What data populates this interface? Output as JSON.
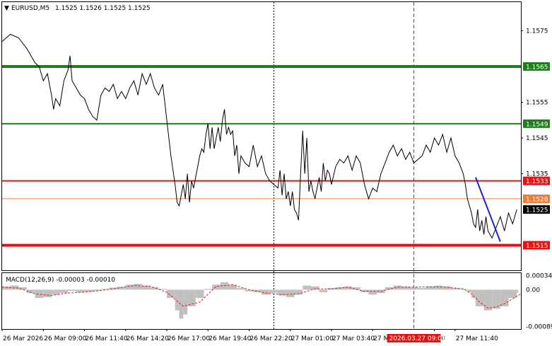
{
  "header": {
    "arrow": "▼",
    "symbol": "EURUSD,M5",
    "ohlc": "1.1525 1.1526 1.1525 1.1525"
  },
  "colors": {
    "green": "#1e7e1e",
    "red": "#e81010",
    "orange": "#f07b34",
    "blue": "#1d1dd6",
    "price": "#000000",
    "macd_hist": "#c0c0c0",
    "macd_signal": "#e02020"
  },
  "chart_data": {
    "type": "line",
    "price_axis": {
      "ylim": [
        1.1508,
        1.1583
      ],
      "ticks": [
        "1.1575",
        "1.1555",
        "1.1545",
        "1.1535"
      ]
    },
    "levels": [
      {
        "value": 1.1565,
        "label": "1.1565",
        "color": "green",
        "width": 4
      },
      {
        "value": 1.1549,
        "label": "1.1549",
        "color": "green",
        "width": 2
      },
      {
        "value": 1.1533,
        "label": "1.1533",
        "color": "red",
        "width": 2
      },
      {
        "value": 1.1528,
        "label": "1.1528",
        "color": "orange",
        "width": 1
      },
      {
        "value": 1.1515,
        "label": "1.1515",
        "color": "red",
        "width": 4
      }
    ],
    "current_price": {
      "value": 1.1525,
      "label": "1.1525"
    },
    "price_series": [
      [
        0,
        1.1572
      ],
      [
        4,
        1.1574
      ],
      [
        8,
        1.1573
      ],
      [
        12,
        1.157
      ],
      [
        16,
        1.1566
      ],
      [
        18,
        1.1565
      ],
      [
        20,
        1.1561
      ],
      [
        22,
        1.1563
      ],
      [
        24,
        1.1557
      ],
      [
        25,
        1.1553
      ],
      [
        26,
        1.1556
      ],
      [
        28,
        1.1554
      ],
      [
        30,
        1.1561
      ],
      [
        32,
        1.1564
      ],
      [
        33,
        1.1568
      ],
      [
        34,
        1.1561
      ],
      [
        36,
        1.1559
      ],
      [
        38,
        1.1557
      ],
      [
        40,
        1.1556
      ],
      [
        42,
        1.1553
      ],
      [
        44,
        1.1551
      ],
      [
        46,
        1.155
      ],
      [
        48,
        1.1557
      ],
      [
        50,
        1.1559
      ],
      [
        52,
        1.1558
      ],
      [
        54,
        1.156
      ],
      [
        56,
        1.1556
      ],
      [
        58,
        1.1558
      ],
      [
        60,
        1.1556
      ],
      [
        62,
        1.1559
      ],
      [
        64,
        1.1561
      ],
      [
        66,
        1.1557
      ],
      [
        68,
        1.1563
      ],
      [
        70,
        1.156
      ],
      [
        72,
        1.1563
      ],
      [
        74,
        1.1559
      ],
      [
        76,
        1.1557
      ],
      [
        78,
        1.156
      ],
      [
        80,
        1.155
      ],
      [
        82,
        1.154
      ],
      [
        84,
        1.1532
      ],
      [
        85,
        1.1527
      ],
      [
        86,
        1.1526
      ],
      [
        87,
        1.1529
      ],
      [
        88,
        1.1532
      ],
      [
        89,
        1.1528
      ],
      [
        90,
        1.1535
      ],
      [
        91,
        1.1527
      ],
      [
        92,
        1.1533
      ],
      [
        93,
        1.1531
      ],
      [
        94,
        1.1534
      ],
      [
        95,
        1.1537
      ],
      [
        96,
        1.154
      ],
      [
        97,
        1.1542
      ],
      [
        98,
        1.1541
      ],
      [
        99,
        1.1546
      ],
      [
        100,
        1.1549
      ],
      [
        101,
        1.1542
      ],
      [
        102,
        1.1548
      ],
      [
        103,
        1.1542
      ],
      [
        104,
        1.1545
      ],
      [
        105,
        1.1548
      ],
      [
        106,
        1.1544
      ],
      [
        107,
        1.155
      ],
      [
        108,
        1.1553
      ],
      [
        109,
        1.1546
      ],
      [
        110,
        1.1548
      ],
      [
        111,
        1.1546
      ],
      [
        112,
        1.1547
      ],
      [
        113,
        1.154
      ],
      [
        114,
        1.1543
      ],
      [
        115,
        1.1535
      ],
      [
        116,
        1.154
      ],
      [
        118,
        1.1538
      ],
      [
        120,
        1.1537
      ],
      [
        122,
        1.1543
      ],
      [
        124,
        1.1537
      ],
      [
        126,
        1.154
      ],
      [
        128,
        1.1535
      ],
      [
        130,
        1.1533
      ],
      [
        132,
        1.1532
      ],
      [
        134,
        1.1531
      ],
      [
        135,
        1.1536
      ],
      [
        136,
        1.1529
      ],
      [
        137,
        1.1535
      ],
      [
        138,
        1.1528
      ],
      [
        139,
        1.153
      ],
      [
        140,
        1.1526
      ],
      [
        141,
        1.153
      ],
      [
        142,
        1.1525
      ],
      [
        143,
        1.1524
      ],
      [
        144,
        1.1522
      ],
      [
        145,
        1.1535
      ],
      [
        146,
        1.1547
      ],
      [
        147,
        1.1535
      ],
      [
        148,
        1.1545
      ],
      [
        149,
        1.153
      ],
      [
        150,
        1.1533
      ],
      [
        151,
        1.153
      ],
      [
        152,
        1.1528
      ],
      [
        153,
        1.1531
      ],
      [
        154,
        1.1534
      ],
      [
        155,
        1.153
      ],
      [
        156,
        1.1538
      ],
      [
        157,
        1.1533
      ],
      [
        158,
        1.1536
      ],
      [
        159,
        1.1535
      ],
      [
        160,
        1.1532
      ],
      [
        162,
        1.1537
      ],
      [
        164,
        1.1539
      ],
      [
        166,
        1.1538
      ],
      [
        168,
        1.154
      ],
      [
        170,
        1.1536
      ],
      [
        172,
        1.154
      ],
      [
        174,
        1.1538
      ],
      [
        176,
        1.1532
      ],
      [
        178,
        1.1528
      ],
      [
        180,
        1.1531
      ],
      [
        182,
        1.153
      ],
      [
        184,
        1.1535
      ],
      [
        186,
        1.1538
      ],
      [
        188,
        1.1541
      ],
      [
        190,
        1.1543
      ],
      [
        192,
        1.154
      ],
      [
        194,
        1.1542
      ],
      [
        196,
        1.1539
      ],
      [
        198,
        1.1541
      ],
      [
        200,
        1.1538
      ],
      [
        202,
        1.1539
      ],
      [
        204,
        1.154
      ],
      [
        206,
        1.1543
      ],
      [
        208,
        1.1541
      ],
      [
        210,
        1.1545
      ],
      [
        212,
        1.1543
      ],
      [
        214,
        1.1546
      ],
      [
        216,
        1.1541
      ],
      [
        218,
        1.1545
      ],
      [
        220,
        1.154
      ],
      [
        222,
        1.1538
      ],
      [
        224,
        1.1535
      ],
      [
        225,
        1.1532
      ],
      [
        226,
        1.1528
      ],
      [
        228,
        1.1524
      ],
      [
        229,
        1.1521
      ],
      [
        230,
        1.152
      ],
      [
        231,
        1.1525
      ],
      [
        232,
        1.1519
      ],
      [
        233,
        1.1522
      ],
      [
        234,
        1.1518
      ],
      [
        235,
        1.1523
      ],
      [
        236,
        1.1519
      ],
      [
        238,
        1.1517
      ],
      [
        240,
        1.152
      ],
      [
        242,
        1.1523
      ],
      [
        244,
        1.1519
      ],
      [
        246,
        1.1524
      ],
      [
        248,
        1.1521
      ],
      [
        250,
        1.1525
      ]
    ],
    "series_x_range": [
      0,
      252
    ],
    "trend_line": {
      "from": [
        230,
        1.1534
      ],
      "to": [
        242,
        1.1516
      ]
    },
    "macd": {
      "label": "MACD(12,26,9) -0.00003 -0.00010",
      "ylim": [
        -0.00095,
        0.0004
      ],
      "ticks": [
        "0.00034",
        "0.00",
        "-0.00089"
      ],
      "histogram": [
        [
          0,
          8e-05
        ],
        [
          4,
          0.0001
        ],
        [
          8,
          6e-05
        ],
        [
          12,
          -8e-05
        ],
        [
          16,
          -0.0002
        ],
        [
          20,
          -0.00018
        ],
        [
          24,
          -0.00012
        ],
        [
          28,
          -8e-05
        ],
        [
          32,
          -3e-05
        ],
        [
          36,
          -6e-05
        ],
        [
          40,
          -5e-05
        ],
        [
          44,
          -3e-05
        ],
        [
          48,
          2e-05
        ],
        [
          52,
          5e-05
        ],
        [
          56,
          7e-05
        ],
        [
          60,
          0.00012
        ],
        [
          64,
          0.00014
        ],
        [
          68,
          0.0001
        ],
        [
          72,
          6e-05
        ],
        [
          76,
          2e-05
        ],
        [
          80,
          -0.0002
        ],
        [
          84,
          -0.0005
        ],
        [
          86,
          -0.0007
        ],
        [
          88,
          -0.0006
        ],
        [
          90,
          -0.0004
        ],
        [
          94,
          -0.0002
        ],
        [
          98,
          2e-05
        ],
        [
          102,
          0.00012
        ],
        [
          106,
          0.00018
        ],
        [
          110,
          0.00012
        ],
        [
          114,
          4e-05
        ],
        [
          118,
          -4e-05
        ],
        [
          122,
          -6e-05
        ],
        [
          126,
          -0.00012
        ],
        [
          130,
          -8e-05
        ],
        [
          134,
          -0.00014
        ],
        [
          138,
          -0.00018
        ],
        [
          142,
          -0.00012
        ],
        [
          146,
          0.0001
        ],
        [
          150,
          8e-05
        ],
        [
          154,
          -6e-05
        ],
        [
          158,
          4e-05
        ],
        [
          162,
          6e-05
        ],
        [
          166,
          8e-05
        ],
        [
          170,
          6e-05
        ],
        [
          174,
          -6e-05
        ],
        [
          178,
          -0.00012
        ],
        [
          182,
          -8e-05
        ],
        [
          186,
          6e-05
        ],
        [
          190,
          0.0001
        ],
        [
          194,
          8e-05
        ],
        [
          198,
          6e-05
        ],
        [
          202,
          4e-05
        ],
        [
          206,
          8e-05
        ],
        [
          210,
          0.0001
        ],
        [
          214,
          8e-05
        ],
        [
          218,
          4e-05
        ],
        [
          222,
          2e-05
        ],
        [
          226,
          -6e-05
        ],
        [
          228,
          -0.0002
        ],
        [
          230,
          -0.0004
        ],
        [
          234,
          -0.0005
        ],
        [
          238,
          -0.00046
        ],
        [
          242,
          -0.0004
        ],
        [
          246,
          -0.0002
        ],
        [
          250,
          -8e-05
        ]
      ],
      "signal": [
        [
          0,
          6e-05
        ],
        [
          8,
          4e-05
        ],
        [
          16,
          -0.0001
        ],
        [
          24,
          -0.00014
        ],
        [
          32,
          -8e-05
        ],
        [
          40,
          -6e-05
        ],
        [
          48,
          -2e-05
        ],
        [
          56,
          4e-05
        ],
        [
          64,
          0.0001
        ],
        [
          72,
          8e-05
        ],
        [
          80,
          -6e-05
        ],
        [
          88,
          -0.0004
        ],
        [
          96,
          -0.0003
        ],
        [
          104,
          8e-05
        ],
        [
          112,
          0.00012
        ],
        [
          120,
          0.0
        ],
        [
          128,
          -8e-05
        ],
        [
          136,
          -0.00012
        ],
        [
          144,
          -0.0001
        ],
        [
          152,
          2e-05
        ],
        [
          160,
          2e-05
        ],
        [
          168,
          6e-05
        ],
        [
          176,
          -4e-05
        ],
        [
          184,
          -4e-05
        ],
        [
          192,
          6e-05
        ],
        [
          200,
          6e-05
        ],
        [
          208,
          7e-05
        ],
        [
          216,
          6e-05
        ],
        [
          224,
          2e-05
        ],
        [
          228,
          -0.0001
        ],
        [
          232,
          -0.0003
        ],
        [
          236,
          -0.00044
        ],
        [
          240,
          -0.00042
        ],
        [
          244,
          -0.00034
        ],
        [
          248,
          -0.00022
        ],
        [
          252,
          -0.0001
        ]
      ]
    },
    "x_labels": [
      "26 Mar 2026",
      "26 Mar 09:00",
      "26 Mar 11:40",
      "26 Mar 14:20",
      "26 Mar 17:00",
      "26 Mar 19:40",
      "26 Mar 22:20",
      "27 Mar 01:00",
      "27 Mar 03:40",
      "27 Mar",
      ":00",
      "27 Mar 11:40"
    ],
    "x_label_positions": [
      0,
      20,
      40,
      60,
      80,
      100,
      120,
      140,
      160,
      180,
      210,
      220
    ],
    "highlight_time": {
      "label": "2026.03.27 09:05",
      "x": 200
    },
    "vlines": [
      {
        "x": 132,
        "style": "dotted-black"
      },
      {
        "x": 200,
        "style": "dashed-red"
      }
    ]
  }
}
